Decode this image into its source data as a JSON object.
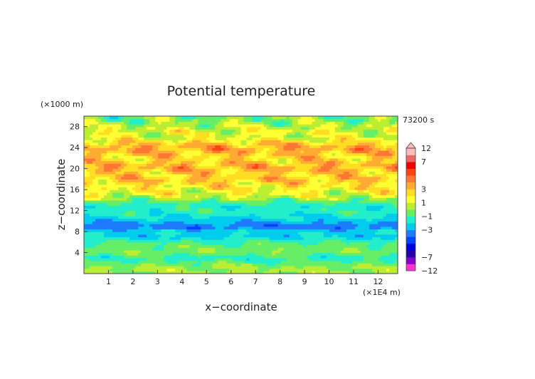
{
  "chart_data": {
    "type": "heatmap",
    "title": "Potential temperature",
    "xlabel": "x−coordinate",
    "ylabel": "z−coordinate",
    "x_unit": "(×1E4 m)",
    "y_unit": "(×1000 m)",
    "time_label": "73200 s",
    "xlim": [
      0,
      12.8
    ],
    "ylim": [
      0,
      30
    ],
    "x_ticks": [
      1,
      2,
      3,
      4,
      5,
      6,
      7,
      8,
      9,
      10,
      11,
      12
    ],
    "y_ticks": [
      4,
      8,
      12,
      16,
      20,
      24,
      28
    ],
    "grid": false,
    "legend_position": "right",
    "colorbar": {
      "levels": [
        -12,
        -9,
        -7,
        -6,
        -5,
        -4,
        -3,
        -2,
        -1,
        0,
        1,
        2,
        3,
        4,
        5,
        6,
        7,
        9,
        12
      ],
      "tick_labels": [
        "12",
        "7",
        "3",
        "1",
        "−1",
        "−3",
        "−7",
        "−12"
      ],
      "tick_values": [
        12,
        7,
        3,
        1,
        -1,
        -3,
        -7,
        -12
      ],
      "colors": [
        "#ff33cc",
        "#8800cc",
        "#2200aa",
        "#0000dd",
        "#0044ff",
        "#1e7bff",
        "#00ccee",
        "#22eecc",
        "#66ee66",
        "#bbee33",
        "#ffff33",
        "#ffdd22",
        "#ffaa33",
        "#ff7733",
        "#ff4411",
        "#ee0000",
        "#ee6666",
        "#ffbbbb"
      ]
    },
    "vertical_profile": {
      "z": [
        0,
        1,
        2,
        3,
        4,
        5,
        6,
        7,
        8,
        9,
        10,
        11,
        12,
        13,
        14,
        15,
        16,
        17,
        18,
        19,
        20,
        21,
        22,
        23,
        24,
        25,
        26,
        27,
        28,
        29,
        30
      ],
      "value": [
        0.2,
        0.2,
        -0.5,
        -1.5,
        -0.4,
        -0.4,
        -0.9,
        -2.4,
        -2.1,
        -3.8,
        -2.6,
        -1.9,
        -1.3,
        -1.7,
        -0.4,
        1.2,
        1.5,
        2.2,
        3.0,
        2.4,
        3.4,
        3.0,
        2.3,
        3.0,
        3.6,
        2.6,
        0.9,
        1.3,
        0.6,
        0.0,
        -0.3
      ]
    }
  }
}
